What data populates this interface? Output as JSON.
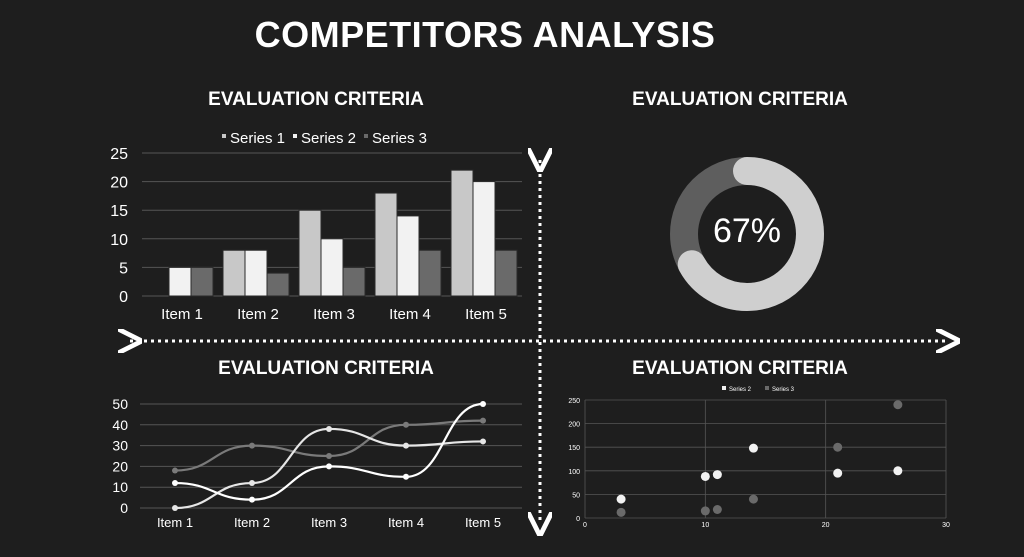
{
  "title": "COMPETITORS ANALYSIS",
  "panels": {
    "bar_title": "EVALUATION CRITERIA",
    "gauge_title": "EVALUATION CRITERIA",
    "line_title": "EVALUATION CRITERIA",
    "scatter_title": "EVALUATION CRITERIA"
  },
  "colors": {
    "series1": "#c8c8c8",
    "series2": "#f2f2f2",
    "series3": "#6a6a6a",
    "grid": "#555555",
    "gauge_fill": "#cfcfcf",
    "gauge_rest": "#5e5e5e"
  },
  "chart_data": [
    {
      "type": "bar",
      "categories": [
        "Item 1",
        "Item 2",
        "Item 3",
        "Item 4",
        "Item 5"
      ],
      "series": [
        {
          "name": "Series 1",
          "values": [
            0,
            8,
            15,
            18,
            22
          ]
        },
        {
          "name": "Series 2",
          "values": [
            5,
            8,
            10,
            14,
            20
          ]
        },
        {
          "name": "Series 3",
          "values": [
            5,
            4,
            5,
            8,
            8
          ]
        }
      ],
      "ylim": [
        0,
        25
      ],
      "yticks": [
        0,
        5,
        10,
        15,
        20,
        25
      ],
      "legend": "top"
    },
    {
      "type": "pie",
      "value_label": "67%",
      "value": 67
    },
    {
      "type": "line",
      "categories": [
        "Item 1",
        "Item 2",
        "Item 3",
        "Item 4",
        "Item 5"
      ],
      "series": [
        {
          "values": [
            12,
            4,
            20,
            15,
            50
          ]
        },
        {
          "values": [
            0,
            12,
            38,
            30,
            32
          ]
        },
        {
          "values": [
            18,
            30,
            25,
            40,
            42
          ]
        }
      ],
      "ylim": [
        0,
        50
      ],
      "yticks": [
        0,
        10,
        20,
        30,
        40,
        50
      ]
    },
    {
      "type": "scatter",
      "legend_entries": [
        "Series 2",
        "Series 3"
      ],
      "series": [
        {
          "name": "Series 2",
          "points": [
            [
              3,
              40
            ],
            [
              10,
              88
            ],
            [
              11,
              92
            ],
            [
              14,
              148
            ],
            [
              21,
              95
            ],
            [
              26,
              100
            ]
          ]
        },
        {
          "name": "Series 3",
          "points": [
            [
              3,
              12
            ],
            [
              10,
              15
            ],
            [
              11,
              18
            ],
            [
              14,
              40
            ],
            [
              21,
              150
            ],
            [
              26,
              240
            ]
          ]
        }
      ],
      "xlim": [
        0,
        30
      ],
      "ylim": [
        0,
        250
      ],
      "xticks": [
        0,
        10,
        20,
        30
      ],
      "yticks": [
        0,
        50,
        100,
        150,
        200,
        250
      ],
      "legend": "top"
    }
  ]
}
